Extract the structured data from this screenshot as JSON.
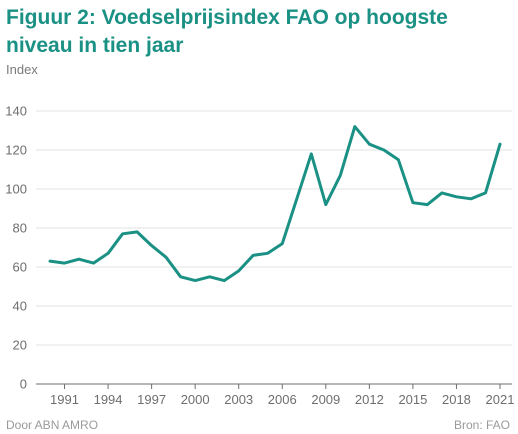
{
  "title": "Figuur 2: Voedselprijsindex FAO op hoogste niveau in tien jaar",
  "footer": {
    "source_left": "Door ABN AMRO",
    "source_right": "Bron: FAO"
  },
  "chart_data": {
    "type": "line",
    "title": "Figuur 2: Voedselprijsindex FAO op hoogste niveau in tien jaar",
    "ylabel": "Index",
    "xlabel": "",
    "ylim": [
      0,
      140
    ],
    "yticks": [
      0,
      20,
      40,
      60,
      80,
      100,
      120,
      140
    ],
    "xticks": [
      1991,
      1994,
      1997,
      2000,
      2003,
      2006,
      2009,
      2012,
      2015,
      2018,
      2021
    ],
    "grid": "horizontal",
    "line_color": "#1a9184",
    "x": [
      1990,
      1991,
      1992,
      1993,
      1994,
      1995,
      1996,
      1997,
      1998,
      1999,
      2000,
      2001,
      2002,
      2003,
      2004,
      2005,
      2006,
      2007,
      2008,
      2009,
      2010,
      2011,
      2012,
      2013,
      2014,
      2015,
      2016,
      2017,
      2018,
      2019,
      2020,
      2021
    ],
    "values": [
      63,
      62,
      64,
      62,
      67,
      77,
      78,
      71,
      65,
      55,
      53,
      55,
      53,
      58,
      66,
      67,
      72,
      95,
      118,
      92,
      107,
      132,
      123,
      120,
      115,
      93,
      92,
      98,
      96,
      95,
      98,
      123
    ]
  }
}
